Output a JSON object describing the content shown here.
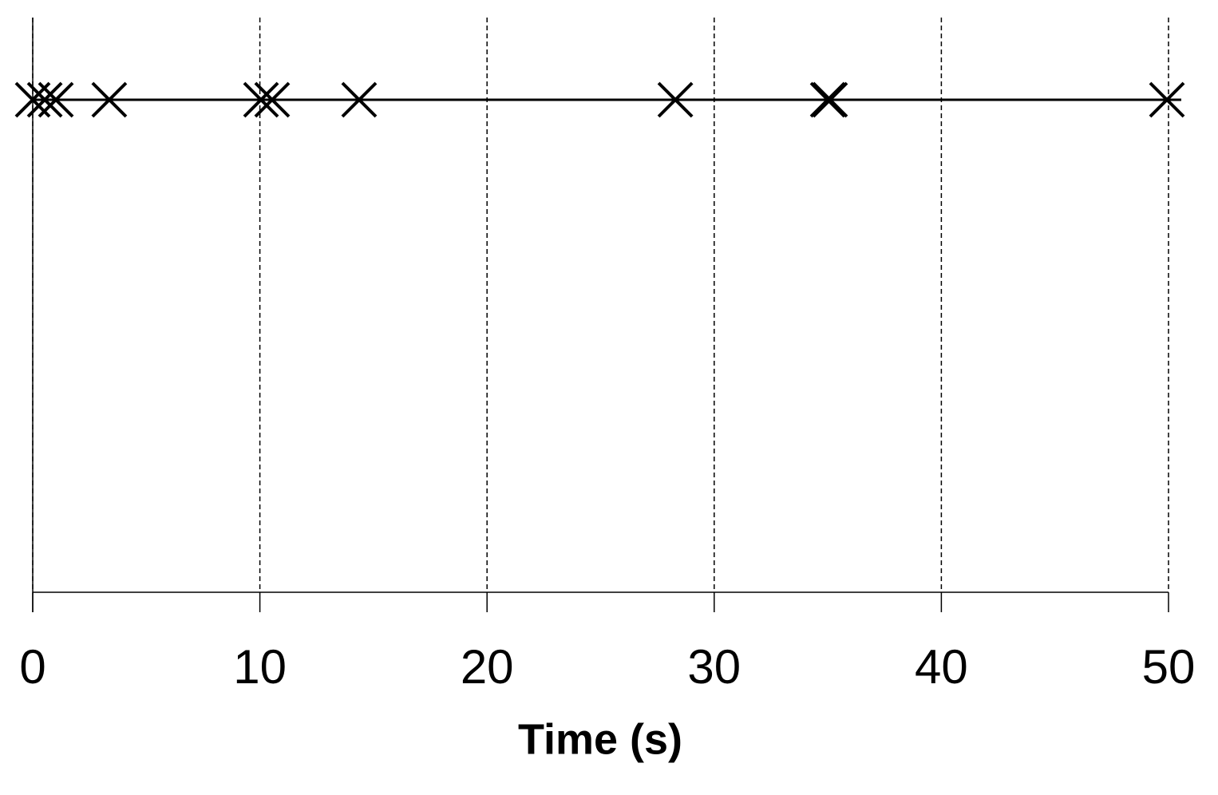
{
  "chart_data": {
    "type": "event-strip",
    "x_label": "Time (s)",
    "values": [
      0,
      0.53,
      1.02,
      3.37,
      10.05,
      10.54,
      14.37,
      28.29,
      35.0,
      35.1,
      49.93
    ],
    "color": "#000000",
    "xlim": [
      0,
      50
    ],
    "xticks": [
      0,
      10,
      20,
      30,
      40,
      50
    ],
    "grid": true
  }
}
